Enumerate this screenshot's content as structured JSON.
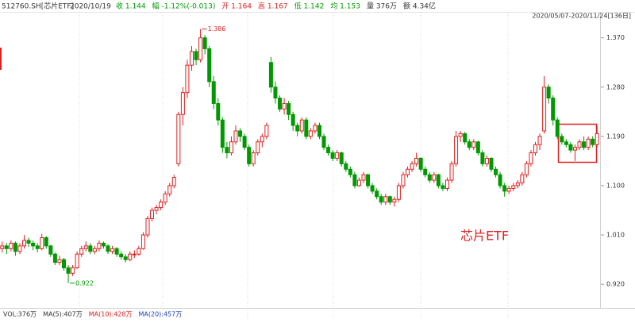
{
  "chart_data": {
    "type": "candlestick",
    "title": "512760.SH[芯片ETF]",
    "date": "2020/10/19",
    "header_items": [
      {
        "text": "收 1.144",
        "color": "#009900"
      },
      {
        "text": "幅 -1.12%(-0.013)",
        "color": "#009900"
      },
      {
        "text": "开 1.164",
        "color": "#e02020"
      },
      {
        "text": "高 1.167",
        "color": "#e02020"
      },
      {
        "text": "低 1.142",
        "color": "#009900"
      },
      {
        "text": "均 1.153",
        "color": "#009900"
      },
      {
        "text": "量 376万",
        "color": "#333333"
      },
      {
        "text": "额 4.34亿",
        "color": "#333333"
      }
    ],
    "range_label": "2020/05/07-2020/11/24[136日]",
    "annotation": "芯片ETF",
    "extremes": {
      "high": 1.386,
      "low": 0.922
    },
    "up_color": "#e02020",
    "down_color": "#009900",
    "volume_legend": [
      {
        "text": "VOL:376万",
        "color": "#333333"
      },
      {
        "text": "MA(5):407万",
        "color": "#333333"
      },
      {
        "text": "MA(10):428万",
        "color": "#e02020"
      },
      {
        "text": "MA(20):457万",
        "color": "#2040c0"
      }
    ],
    "ylim": [
      0.884,
      1.413
    ],
    "yticks": [
      {
        "value": 1.37,
        "label": "1.370"
      },
      {
        "value": 1.28,
        "label": "1.280"
      },
      {
        "value": 1.19,
        "label": "1.190"
      },
      {
        "value": 1.1,
        "label": "1.100"
      },
      {
        "value": 1.01,
        "label": "1.010"
      },
      {
        "value": 0.92,
        "label": "0.920"
      }
    ],
    "ohlc": [
      [
        0.985,
        0.998,
        0.978,
        0.99
      ],
      [
        0.99,
        0.995,
        0.975,
        0.985
      ],
      [
        0.985,
        1.0,
        0.98,
        0.995
      ],
      [
        0.995,
        0.998,
        0.972,
        0.98
      ],
      [
        0.98,
        0.995,
        0.975,
        0.99
      ],
      [
        0.99,
        1.01,
        0.985,
        1.0
      ],
      [
        1.0,
        1.005,
        0.988,
        0.995
      ],
      [
        0.995,
        1.0,
        0.982,
        0.99
      ],
      [
        0.99,
        0.995,
        0.978,
        0.985
      ],
      [
        0.985,
        1.012,
        0.982,
        1.005
      ],
      [
        1.005,
        1.008,
        0.985,
        0.99
      ],
      [
        0.99,
        0.992,
        0.97,
        0.975
      ],
      [
        0.975,
        0.978,
        0.955,
        0.96
      ],
      [
        0.96,
        0.972,
        0.955,
        0.965
      ],
      [
        0.965,
        0.968,
        0.945,
        0.95
      ],
      [
        0.95,
        0.955,
        0.922,
        0.94
      ],
      [
        0.94,
        0.955,
        0.935,
        0.95
      ],
      [
        0.95,
        0.98,
        0.948,
        0.975
      ],
      [
        0.975,
        0.99,
        0.97,
        0.985
      ],
      [
        0.985,
        0.998,
        0.98,
        0.99
      ],
      [
        0.99,
        0.995,
        0.975,
        0.98
      ],
      [
        0.98,
        0.99,
        0.975,
        0.985
      ],
      [
        0.985,
        1.0,
        0.98,
        0.995
      ],
      [
        0.995,
        0.998,
        0.985,
        0.99
      ],
      [
        0.99,
        0.993,
        0.975,
        0.98
      ],
      [
        0.98,
        0.99,
        0.975,
        0.985
      ],
      [
        0.985,
        0.988,
        0.97,
        0.975
      ],
      [
        0.975,
        0.98,
        0.965,
        0.97
      ],
      [
        0.97,
        0.975,
        0.96,
        0.965
      ],
      [
        0.965,
        0.98,
        0.962,
        0.975
      ],
      [
        0.975,
        0.982,
        0.968,
        0.975
      ],
      [
        0.975,
        0.99,
        0.972,
        0.985
      ],
      [
        0.985,
        1.015,
        0.983,
        1.01
      ],
      [
        1.01,
        1.045,
        1.005,
        1.04
      ],
      [
        1.04,
        1.06,
        1.035,
        1.055
      ],
      [
        1.055,
        1.065,
        1.048,
        1.06
      ],
      [
        1.06,
        1.075,
        1.055,
        1.07
      ],
      [
        1.07,
        1.09,
        1.065,
        1.085
      ],
      [
        1.085,
        1.105,
        1.08,
        1.1
      ],
      [
        1.1,
        1.12,
        1.095,
        1.115
      ],
      [
        1.14,
        1.235,
        1.135,
        1.23
      ],
      [
        1.23,
        1.28,
        1.21,
        1.27
      ],
      [
        1.27,
        1.33,
        1.26,
        1.32
      ],
      [
        1.32,
        1.355,
        1.31,
        1.345
      ],
      [
        1.345,
        1.35,
        1.32,
        1.33
      ],
      [
        1.33,
        1.386,
        1.325,
        1.37
      ],
      [
        1.37,
        1.375,
        1.34,
        1.35
      ],
      [
        1.35,
        1.355,
        1.28,
        1.29
      ],
      [
        1.29,
        1.3,
        1.24,
        1.25
      ],
      [
        1.25,
        1.26,
        1.21,
        1.22
      ],
      [
        1.22,
        1.225,
        1.16,
        1.17
      ],
      [
        1.17,
        1.18,
        1.15,
        1.16
      ],
      [
        1.16,
        1.19,
        1.155,
        1.18
      ],
      [
        1.18,
        1.21,
        1.175,
        1.2
      ],
      [
        1.2,
        1.205,
        1.18,
        1.19
      ],
      [
        1.19,
        1.195,
        1.165,
        1.17
      ],
      [
        1.17,
        1.175,
        1.135,
        1.14
      ],
      [
        1.14,
        1.165,
        1.135,
        1.16
      ],
      [
        1.16,
        1.185,
        1.155,
        1.18
      ],
      [
        1.18,
        1.195,
        1.17,
        1.19
      ],
      [
        1.19,
        1.215,
        1.185,
        1.21
      ],
      [
        1.325,
        1.335,
        1.27,
        1.28
      ],
      [
        1.28,
        1.29,
        1.25,
        1.26
      ],
      [
        1.26,
        1.265,
        1.235,
        1.24
      ],
      [
        1.24,
        1.26,
        1.23,
        1.25
      ],
      [
        1.25,
        1.255,
        1.22,
        1.23
      ],
      [
        1.23,
        1.235,
        1.2,
        1.21
      ],
      [
        1.21,
        1.215,
        1.19,
        1.2
      ],
      [
        1.2,
        1.225,
        1.195,
        1.22
      ],
      [
        1.22,
        1.225,
        1.185,
        1.19
      ],
      [
        1.19,
        1.205,
        1.185,
        1.2
      ],
      [
        1.2,
        1.215,
        1.195,
        1.21
      ],
      [
        1.21,
        1.215,
        1.185,
        1.19
      ],
      [
        1.19,
        1.195,
        1.165,
        1.17
      ],
      [
        1.17,
        1.175,
        1.155,
        1.16
      ],
      [
        1.16,
        1.165,
        1.145,
        1.15
      ],
      [
        1.15,
        1.165,
        1.145,
        1.16
      ],
      [
        1.16,
        1.162,
        1.135,
        1.14
      ],
      [
        1.14,
        1.145,
        1.125,
        1.13
      ],
      [
        1.13,
        1.135,
        1.115,
        1.12
      ],
      [
        1.12,
        1.125,
        1.095,
        1.1
      ],
      [
        1.1,
        1.115,
        1.098,
        1.11
      ],
      [
        1.11,
        1.125,
        1.105,
        1.12
      ],
      [
        1.12,
        1.122,
        1.095,
        1.1
      ],
      [
        1.1,
        1.105,
        1.085,
        1.09
      ],
      [
        1.09,
        1.095,
        1.075,
        1.08
      ],
      [
        1.08,
        1.085,
        1.065,
        1.07
      ],
      [
        1.07,
        1.085,
        1.065,
        1.08
      ],
      [
        1.08,
        1.082,
        1.065,
        1.07
      ],
      [
        1.07,
        1.08,
        1.062,
        1.075
      ],
      [
        1.075,
        1.105,
        1.07,
        1.1
      ],
      [
        1.1,
        1.125,
        1.095,
        1.12
      ],
      [
        1.12,
        1.135,
        1.115,
        1.13
      ],
      [
        1.13,
        1.145,
        1.125,
        1.14
      ],
      [
        1.14,
        1.16,
        1.135,
        1.15
      ],
      [
        1.15,
        1.152,
        1.125,
        1.13
      ],
      [
        1.13,
        1.135,
        1.115,
        1.12
      ],
      [
        1.12,
        1.125,
        1.105,
        1.11
      ],
      [
        1.11,
        1.125,
        1.105,
        1.12
      ],
      [
        1.12,
        1.122,
        1.095,
        1.1
      ],
      [
        1.1,
        1.105,
        1.09,
        1.095
      ],
      [
        1.095,
        1.115,
        1.09,
        1.11
      ],
      [
        1.11,
        1.145,
        1.105,
        1.14
      ],
      [
        1.14,
        1.2,
        1.135,
        1.19
      ],
      [
        1.19,
        1.2,
        1.18,
        1.195
      ],
      [
        1.195,
        1.198,
        1.175,
        1.18
      ],
      [
        1.18,
        1.185,
        1.165,
        1.17
      ],
      [
        1.17,
        1.185,
        1.165,
        1.18
      ],
      [
        1.18,
        1.182,
        1.155,
        1.16
      ],
      [
        1.16,
        1.165,
        1.135,
        1.14
      ],
      [
        1.14,
        1.155,
        1.135,
        1.15
      ],
      [
        1.15,
        1.152,
        1.125,
        1.13
      ],
      [
        1.13,
        1.135,
        1.115,
        1.12
      ],
      [
        1.12,
        1.125,
        1.095,
        1.1
      ],
      [
        1.1,
        1.105,
        1.08,
        1.09
      ],
      [
        1.09,
        1.1,
        1.085,
        1.095
      ],
      [
        1.095,
        1.105,
        1.09,
        1.1
      ],
      [
        1.1,
        1.11,
        1.095,
        1.105
      ],
      [
        1.105,
        1.125,
        1.1,
        1.12
      ],
      [
        1.12,
        1.145,
        1.115,
        1.14
      ],
      [
        1.14,
        1.165,
        1.135,
        1.16
      ],
      [
        1.16,
        1.18,
        1.155,
        1.175
      ],
      [
        1.175,
        1.195,
        1.165,
        1.19
      ],
      [
        1.2,
        1.3,
        1.195,
        1.28
      ],
      [
        1.28,
        1.285,
        1.25,
        1.26
      ],
      [
        1.26,
        1.265,
        1.21,
        1.22
      ],
      [
        1.22,
        1.225,
        1.185,
        1.19
      ],
      [
        1.19,
        1.195,
        1.175,
        1.18
      ],
      [
        1.18,
        1.185,
        1.17,
        1.175
      ],
      [
        1.175,
        1.18,
        1.16,
        1.165
      ],
      [
        1.165,
        1.175,
        1.145,
        1.17
      ],
      [
        1.17,
        1.185,
        1.165,
        1.18
      ],
      [
        1.18,
        1.19,
        1.165,
        1.17
      ],
      [
        1.17,
        1.19,
        1.165,
        1.185
      ],
      [
        1.185,
        1.19,
        1.17,
        1.175
      ],
      [
        1.175,
        1.21,
        1.17,
        1.195
      ]
    ]
  }
}
